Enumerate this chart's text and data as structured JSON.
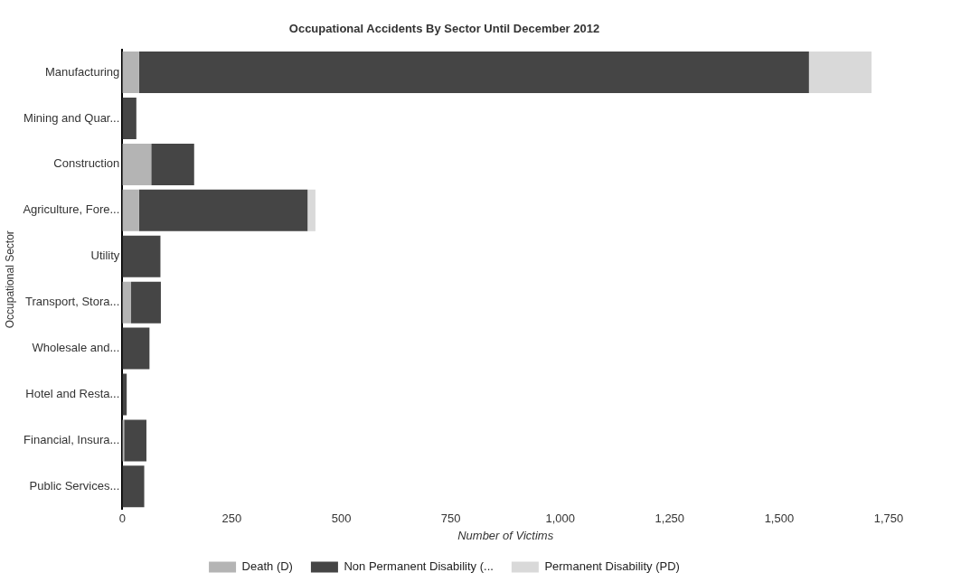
{
  "chart_data": {
    "type": "bar",
    "orientation": "horizontal",
    "stacked": true,
    "title": "Occupational Accidents By Sector Until December 2012",
    "xlabel": "Number of Victims",
    "ylabel": "Occupational Sector",
    "categories": [
      "Manufacturing",
      "Mining and Quar...",
      "Construction",
      "Agriculture, Fore...",
      "Utility",
      "Transport, Stora...",
      "Wholesale and...",
      "Hotel and Resta...",
      "Financial, Insura...",
      "Public Services..."
    ],
    "series": [
      {
        "name": "Death (D)",
        "color": "#b4b4b4",
        "values": [
          38,
          null,
          66,
          38,
          0,
          20,
          null,
          0,
          4,
          null
        ]
      },
      {
        "name": "Non Permanent Disability (...",
        "color": "#454545",
        "values": [
          1530,
          32,
          98,
          385,
          87,
          68,
          62,
          10,
          51,
          50
        ]
      },
      {
        "name": "Permanent Disability (PD)",
        "color": "#d9d9d9",
        "values": [
          143,
          0,
          0,
          18,
          0,
          0,
          0,
          0,
          0,
          0
        ]
      }
    ],
    "xlim": [
      0,
      1750
    ],
    "xticks": [
      0,
      250,
      500,
      750,
      {
        "value": 1000,
        "label": "1,000"
      },
      {
        "value": 1250,
        "label": "1,250"
      },
      {
        "value": 1500,
        "label": "1,500"
      },
      {
        "value": 1750,
        "label": "1,750"
      }
    ],
    "grid": false,
    "legend": "bottom"
  }
}
